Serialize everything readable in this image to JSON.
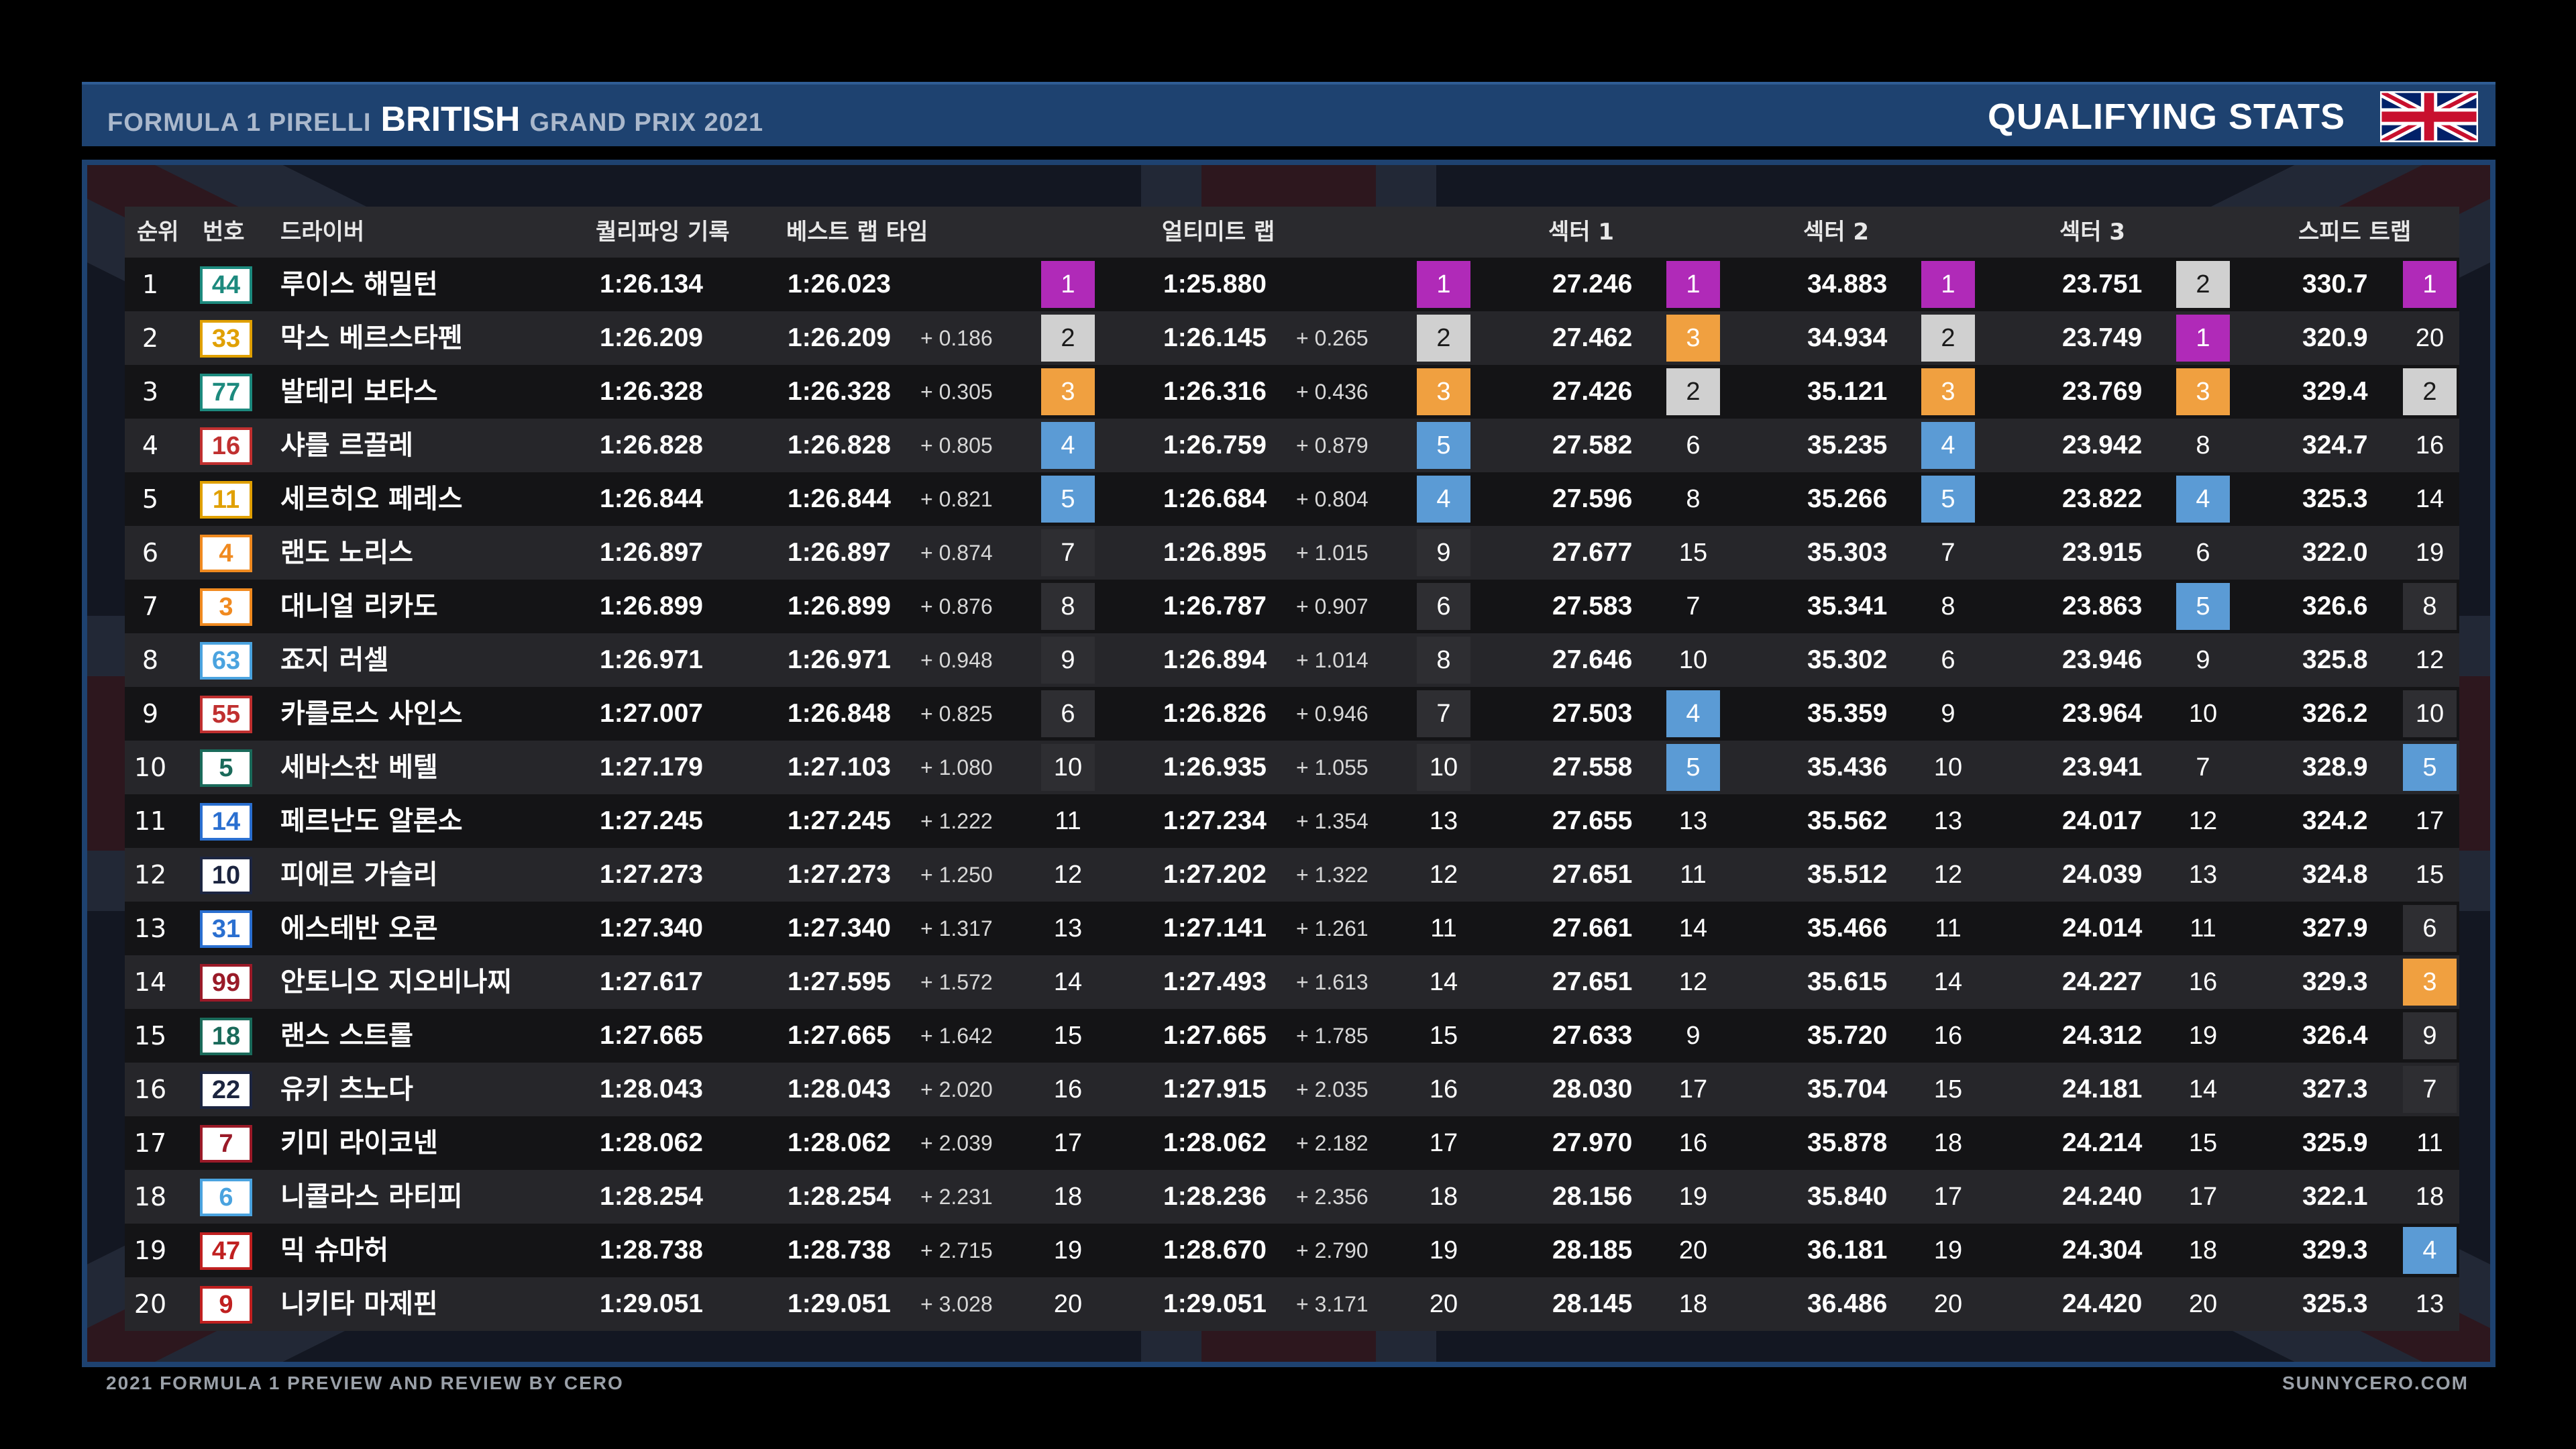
{
  "header": {
    "prefix": "FORMULA 1 PIRELLI",
    "race": "BRITISH",
    "suffix": "GRAND PRIX 2021",
    "stats_title": "QUALIFYING STATS",
    "flag_icon": "uk-flag-icon"
  },
  "columns": {
    "pos": "순위",
    "num": "번호",
    "driver": "드라이버",
    "qual": "퀄리파잉 기록",
    "best": "베스트 랩 타임",
    "ultimate": "얼티미트 랩",
    "s1": "섹터 1",
    "s2": "섹터 2",
    "s3": "섹터 3",
    "speed": "스피드 트랩"
  },
  "rank_colors": {
    "1": "#b02ab8",
    "2": "#d0d0d0",
    "3": "#f0a040",
    "4": "#5b9bd5",
    "5": "#5b9bd5",
    "6+": "#2e2e32"
  },
  "rows": [
    {
      "pos": "1",
      "num": "44",
      "num_color": "#1d8a7e",
      "name": "루이스 해밀턴",
      "qual": "1:26.134",
      "best": "1:26.023",
      "best_gap": "",
      "best_rank": "1",
      "ult": "1:25.880",
      "ult_gap": "",
      "ult_rank": "1",
      "s1": "27.246",
      "s1_rank": "1",
      "s2": "34.883",
      "s2_rank": "1",
      "s3": "23.751",
      "s3_rank": "2",
      "speed": "330.7",
      "speed_rank": "1"
    },
    {
      "pos": "2",
      "num": "33",
      "num_color": "#e0a000",
      "name": "막스 베르스타펜",
      "qual": "1:26.209",
      "best": "1:26.209",
      "best_gap": "+ 0.186",
      "best_rank": "2",
      "ult": "1:26.145",
      "ult_gap": "+ 0.265",
      "ult_rank": "2",
      "s1": "27.462",
      "s1_rank": "3",
      "s2": "34.934",
      "s2_rank": "2",
      "s3": "23.749",
      "s3_rank": "1",
      "speed": "320.9",
      "speed_rank": "20"
    },
    {
      "pos": "3",
      "num": "77",
      "num_color": "#1d8a7e",
      "name": "발테리 보타스",
      "qual": "1:26.328",
      "best": "1:26.328",
      "best_gap": "+ 0.305",
      "best_rank": "3",
      "ult": "1:26.316",
      "ult_gap": "+ 0.436",
      "ult_rank": "3",
      "s1": "27.426",
      "s1_rank": "2",
      "s2": "35.121",
      "s2_rank": "3",
      "s3": "23.769",
      "s3_rank": "3",
      "speed": "329.4",
      "speed_rank": "2"
    },
    {
      "pos": "4",
      "num": "16",
      "num_color": "#c03030",
      "name": "샤를 르끌레",
      "qual": "1:26.828",
      "best": "1:26.828",
      "best_gap": "+ 0.805",
      "best_rank": "4",
      "ult": "1:26.759",
      "ult_gap": "+ 0.879",
      "ult_rank": "5",
      "s1": "27.582",
      "s1_rank": "6",
      "s2": "35.235",
      "s2_rank": "4",
      "s3": "23.942",
      "s3_rank": "8",
      "speed": "324.7",
      "speed_rank": "16"
    },
    {
      "pos": "5",
      "num": "11",
      "num_color": "#e0a000",
      "name": "세르히오 페레스",
      "qual": "1:26.844",
      "best": "1:26.844",
      "best_gap": "+ 0.821",
      "best_rank": "5",
      "ult": "1:26.684",
      "ult_gap": "+ 0.804",
      "ult_rank": "4",
      "s1": "27.596",
      "s1_rank": "8",
      "s2": "35.266",
      "s2_rank": "5",
      "s3": "23.822",
      "s3_rank": "4",
      "speed": "325.3",
      "speed_rank": "14"
    },
    {
      "pos": "6",
      "num": "4",
      "num_color": "#f08a20",
      "name": "랜도 노리스",
      "qual": "1:26.897",
      "best": "1:26.897",
      "best_gap": "+ 0.874",
      "best_rank": "7",
      "ult": "1:26.895",
      "ult_gap": "+ 1.015",
      "ult_rank": "9",
      "s1": "27.677",
      "s1_rank": "15",
      "s2": "35.303",
      "s2_rank": "7",
      "s3": "23.915",
      "s3_rank": "6",
      "speed": "322.0",
      "speed_rank": "19"
    },
    {
      "pos": "7",
      "num": "3",
      "num_color": "#f08a20",
      "name": "대니얼 리카도",
      "qual": "1:26.899",
      "best": "1:26.899",
      "best_gap": "+ 0.876",
      "best_rank": "8",
      "ult": "1:26.787",
      "ult_gap": "+ 0.907",
      "ult_rank": "6",
      "s1": "27.583",
      "s1_rank": "7",
      "s2": "35.341",
      "s2_rank": "8",
      "s3": "23.863",
      "s3_rank": "5",
      "speed": "326.6",
      "speed_rank": "8"
    },
    {
      "pos": "8",
      "num": "63",
      "num_color": "#4aa3df",
      "name": "죠지 러셀",
      "qual": "1:26.971",
      "best": "1:26.971",
      "best_gap": "+ 0.948",
      "best_rank": "9",
      "ult": "1:26.894",
      "ult_gap": "+ 1.014",
      "ult_rank": "8",
      "s1": "27.646",
      "s1_rank": "10",
      "s2": "35.302",
      "s2_rank": "6",
      "s3": "23.946",
      "s3_rank": "9",
      "speed": "325.8",
      "speed_rank": "12"
    },
    {
      "pos": "9",
      "num": "55",
      "num_color": "#c03030",
      "name": "카를로스 사인스",
      "qual": "1:27.007",
      "best": "1:26.848",
      "best_gap": "+ 0.825",
      "best_rank": "6",
      "ult": "1:26.826",
      "ult_gap": "+ 0.946",
      "ult_rank": "7",
      "s1": "27.503",
      "s1_rank": "4",
      "s2": "35.359",
      "s2_rank": "9",
      "s3": "23.964",
      "s3_rank": "10",
      "speed": "326.2",
      "speed_rank": "10"
    },
    {
      "pos": "10",
      "num": "5",
      "num_color": "#1a6a5a",
      "name": "세바스찬 베텔",
      "qual": "1:27.179",
      "best": "1:27.103",
      "best_gap": "+ 1.080",
      "best_rank": "10",
      "ult": "1:26.935",
      "ult_gap": "+ 1.055",
      "ult_rank": "10",
      "s1": "27.558",
      "s1_rank": "5",
      "s2": "35.436",
      "s2_rank": "10",
      "s3": "23.941",
      "s3_rank": "7",
      "speed": "328.9",
      "speed_rank": "5"
    },
    {
      "pos": "11",
      "num": "14",
      "num_color": "#2a6fd0",
      "name": "페르난도 알론소",
      "qual": "1:27.245",
      "best": "1:27.245",
      "best_gap": "+ 1.222",
      "best_rank": "11",
      "ult": "1:27.234",
      "ult_gap": "+ 1.354",
      "ult_rank": "13",
      "s1": "27.655",
      "s1_rank": "13",
      "s2": "35.562",
      "s2_rank": "13",
      "s3": "24.017",
      "s3_rank": "12",
      "speed": "324.2",
      "speed_rank": "17"
    },
    {
      "pos": "12",
      "num": "10",
      "num_color": "#1c2540",
      "name": "피에르 가슬리",
      "qual": "1:27.273",
      "best": "1:27.273",
      "best_gap": "+ 1.250",
      "best_rank": "12",
      "ult": "1:27.202",
      "ult_gap": "+ 1.322",
      "ult_rank": "12",
      "s1": "27.651",
      "s1_rank": "11",
      "s2": "35.512",
      "s2_rank": "12",
      "s3": "24.039",
      "s3_rank": "13",
      "speed": "324.8",
      "speed_rank": "15"
    },
    {
      "pos": "13",
      "num": "31",
      "num_color": "#2a6fd0",
      "name": "에스테반 오콘",
      "qual": "1:27.340",
      "best": "1:27.340",
      "best_gap": "+ 1.317",
      "best_rank": "13",
      "ult": "1:27.141",
      "ult_gap": "+ 1.261",
      "ult_rank": "11",
      "s1": "27.661",
      "s1_rank": "14",
      "s2": "35.466",
      "s2_rank": "11",
      "s3": "24.014",
      "s3_rank": "11",
      "speed": "327.9",
      "speed_rank": "6"
    },
    {
      "pos": "14",
      "num": "99",
      "num_color": "#9a1a28",
      "name": "안토니오 지오비나찌",
      "qual": "1:27.617",
      "best": "1:27.595",
      "best_gap": "+ 1.572",
      "best_rank": "14",
      "ult": "1:27.493",
      "ult_gap": "+ 1.613",
      "ult_rank": "14",
      "s1": "27.651",
      "s1_rank": "12",
      "s2": "35.615",
      "s2_rank": "14",
      "s3": "24.227",
      "s3_rank": "16",
      "speed": "329.3",
      "speed_rank": "3"
    },
    {
      "pos": "15",
      "num": "18",
      "num_color": "#1a6a5a",
      "name": "랜스 스트롤",
      "qual": "1:27.665",
      "best": "1:27.665",
      "best_gap": "+ 1.642",
      "best_rank": "15",
      "ult": "1:27.665",
      "ult_gap": "+ 1.785",
      "ult_rank": "15",
      "s1": "27.633",
      "s1_rank": "9",
      "s2": "35.720",
      "s2_rank": "16",
      "s3": "24.312",
      "s3_rank": "19",
      "speed": "326.4",
      "speed_rank": "9"
    },
    {
      "pos": "16",
      "num": "22",
      "num_color": "#1c2540",
      "name": "유키 츠노다",
      "qual": "1:28.043",
      "best": "1:28.043",
      "best_gap": "+ 2.020",
      "best_rank": "16",
      "ult": "1:27.915",
      "ult_gap": "+ 2.035",
      "ult_rank": "16",
      "s1": "28.030",
      "s1_rank": "17",
      "s2": "35.704",
      "s2_rank": "15",
      "s3": "24.181",
      "s3_rank": "14",
      "speed": "327.3",
      "speed_rank": "7"
    },
    {
      "pos": "17",
      "num": "7",
      "num_color": "#9a1a28",
      "name": "키미 라이코넨",
      "qual": "1:28.062",
      "best": "1:28.062",
      "best_gap": "+ 2.039",
      "best_rank": "17",
      "ult": "1:28.062",
      "ult_gap": "+ 2.182",
      "ult_rank": "17",
      "s1": "27.970",
      "s1_rank": "16",
      "s2": "35.878",
      "s2_rank": "18",
      "s3": "24.214",
      "s3_rank": "15",
      "speed": "325.9",
      "speed_rank": "11"
    },
    {
      "pos": "18",
      "num": "6",
      "num_color": "#4aa3df",
      "name": "니콜라스 라티피",
      "qual": "1:28.254",
      "best": "1:28.254",
      "best_gap": "+ 2.231",
      "best_rank": "18",
      "ult": "1:28.236",
      "ult_gap": "+ 2.356",
      "ult_rank": "18",
      "s1": "28.156",
      "s1_rank": "19",
      "s2": "35.840",
      "s2_rank": "17",
      "s3": "24.240",
      "s3_rank": "17",
      "speed": "322.1",
      "speed_rank": "18"
    },
    {
      "pos": "19",
      "num": "47",
      "num_color": "#c02020",
      "name": "믹 슈마허",
      "qual": "1:28.738",
      "best": "1:28.738",
      "best_gap": "+ 2.715",
      "best_rank": "19",
      "ult": "1:28.670",
      "ult_gap": "+ 2.790",
      "ult_rank": "19",
      "s1": "28.185",
      "s1_rank": "20",
      "s2": "36.181",
      "s2_rank": "19",
      "s3": "24.304",
      "s3_rank": "18",
      "speed": "329.3",
      "speed_rank": "4"
    },
    {
      "pos": "20",
      "num": "9",
      "num_color": "#c02020",
      "name": "니키타 마제핀",
      "qual": "1:29.051",
      "best": "1:29.051",
      "best_gap": "+ 3.028",
      "best_rank": "20",
      "ult": "1:29.051",
      "ult_gap": "+ 3.171",
      "ult_rank": "20",
      "s1": "28.145",
      "s1_rank": "18",
      "s2": "36.486",
      "s2_rank": "20",
      "s3": "24.420",
      "s3_rank": "20",
      "speed": "325.3",
      "speed_rank": "13"
    }
  ],
  "footer": {
    "left": "2021 FORMULA 1 PREVIEW AND REVIEW BY CERO",
    "right": "SUNNYCERO.COM"
  }
}
